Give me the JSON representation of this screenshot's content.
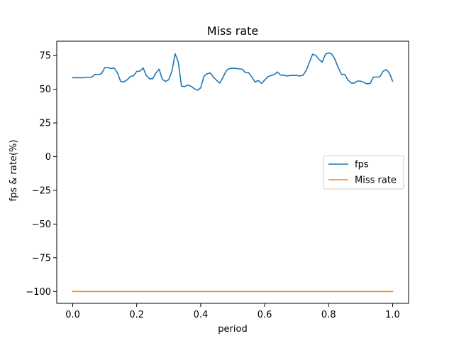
{
  "chart_data": {
    "type": "line",
    "title": "Miss rate",
    "xlabel": "period",
    "ylabel": "fps & rate(%)",
    "xlim": [
      -0.05,
      1.05
    ],
    "ylim": [
      -108.8,
      85.6
    ],
    "xticks": [
      0.0,
      0.2,
      0.4,
      0.6,
      0.8,
      1.0
    ],
    "xtick_labels": [
      "0.0",
      "0.2",
      "0.4",
      "0.6",
      "0.8",
      "1.0"
    ],
    "yticks": [
      75,
      50,
      25,
      0,
      -25,
      -50,
      -75,
      -100
    ],
    "ytick_labels": [
      "75",
      "50",
      "25",
      "0",
      "−25",
      "−50",
      "−75",
      "−100"
    ],
    "grid": false,
    "legend_position": "center-right",
    "series": [
      {
        "name": "fps",
        "color": "#1f77b4",
        "x": [
          0.0,
          0.01,
          0.02,
          0.03,
          0.04,
          0.05,
          0.06,
          0.07,
          0.08,
          0.09,
          0.1,
          0.11,
          0.12,
          0.13,
          0.14,
          0.15,
          0.16,
          0.17,
          0.18,
          0.19,
          0.2,
          0.21,
          0.22,
          0.23,
          0.24,
          0.25,
          0.26,
          0.27,
          0.28,
          0.29,
          0.3,
          0.31,
          0.32,
          0.33,
          0.34,
          0.35,
          0.36,
          0.37,
          0.38,
          0.39,
          0.4,
          0.41,
          0.42,
          0.43,
          0.44,
          0.45,
          0.46,
          0.47,
          0.48,
          0.49,
          0.5,
          0.51,
          0.52,
          0.53,
          0.54,
          0.55,
          0.56,
          0.57,
          0.58,
          0.59,
          0.6,
          0.61,
          0.62,
          0.63,
          0.64,
          0.65,
          0.66,
          0.67,
          0.68,
          0.69,
          0.7,
          0.71,
          0.72,
          0.73,
          0.74,
          0.75,
          0.76,
          0.77,
          0.78,
          0.79,
          0.8,
          0.81,
          0.82,
          0.83,
          0.84,
          0.85,
          0.86,
          0.87,
          0.88,
          0.89,
          0.9,
          0.91,
          0.92,
          0.93,
          0.94,
          0.95,
          0.96,
          0.97,
          0.98,
          0.99,
          1.0
        ],
        "y": [
          58.5,
          58.5,
          58.5,
          58.5,
          58.6,
          58.8,
          59,
          61,
          60.8,
          61.5,
          66,
          66,
          65.4,
          65.6,
          62,
          55.6,
          55.4,
          57,
          59.4,
          60,
          63.2,
          63.4,
          65.8,
          60,
          57.8,
          57.8,
          62,
          64.9,
          57.4,
          55.8,
          57,
          63.2,
          76.3,
          70,
          52.2,
          52,
          53,
          52.2,
          50.4,
          49.2,
          51,
          59.5,
          61.5,
          62,
          59,
          56.5,
          54.5,
          59,
          63.8,
          65.3,
          65.6,
          65.4,
          65.1,
          64.9,
          62.3,
          62.2,
          59,
          55.3,
          56.5,
          54.3,
          56.8,
          59.2,
          60.2,
          60.8,
          62.8,
          60.5,
          60.3,
          59.8,
          60.2,
          60.2,
          60.2,
          59.8,
          60.4,
          64,
          70,
          76,
          75,
          72,
          70,
          76,
          77,
          76,
          72,
          66,
          61,
          61,
          57,
          54.6,
          54.5,
          56,
          56,
          55,
          54,
          54.3,
          59,
          59,
          59.2,
          63.2,
          64.6,
          62,
          56
        ]
      },
      {
        "name": "Miss rate",
        "color": "#ff7f0e",
        "x": [
          0.0,
          1.0
        ],
        "y": [
          -100,
          -100
        ]
      }
    ]
  }
}
